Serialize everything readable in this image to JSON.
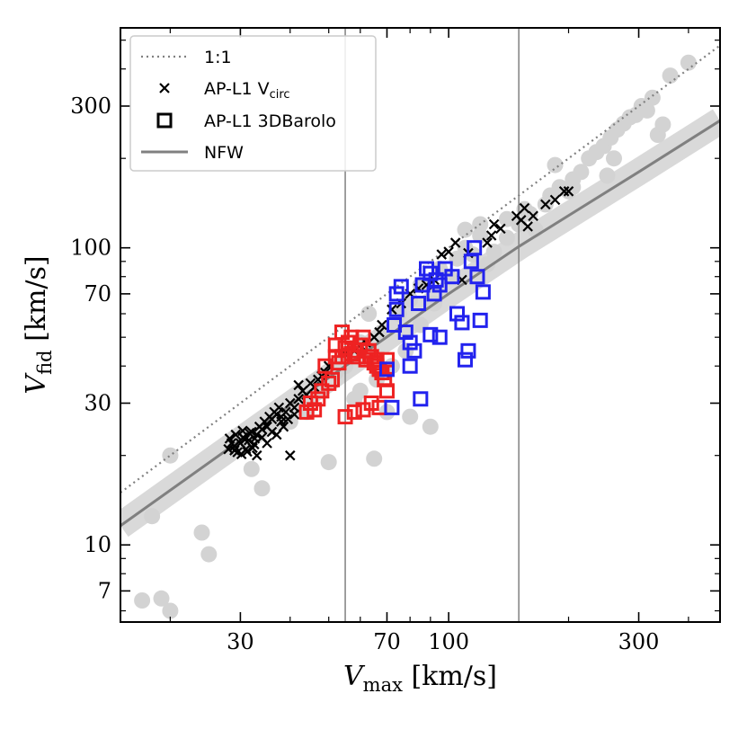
{
  "chart_data": {
    "type": "scatter",
    "title": "",
    "xlabel": {
      "main": "V",
      "sub": "max",
      "unit": " [km/s]"
    },
    "ylabel": {
      "main": "V",
      "sub": "fid",
      "unit": " [km/s]"
    },
    "xscale": "log",
    "yscale": "log",
    "xlim": [
      15,
      480
    ],
    "ylim": [
      5.5,
      550
    ],
    "xticks": [
      30,
      70,
      100,
      300
    ],
    "xtick_labels": [
      "30",
      "70",
      "100",
      "300"
    ],
    "yticks": [
      7,
      10,
      30,
      70,
      100,
      300
    ],
    "ytick_labels": [
      "7",
      "10",
      "30",
      "70",
      "100",
      "300"
    ],
    "x_minor_ticks": [
      20,
      40,
      50,
      60,
      80,
      90,
      200,
      400
    ],
    "y_minor_ticks": [
      6,
      8,
      9,
      20,
      40,
      50,
      60,
      80,
      90,
      200,
      400,
      500
    ],
    "vertical_lines": [
      55,
      150
    ],
    "legend_position": "top-left",
    "legend": [
      {
        "label": "1:1",
        "style": "dotted-line",
        "color": "#808080"
      },
      {
        "label": "AP-L1 V",
        "sub": "circ",
        "style": "x-marker",
        "color": "#000000"
      },
      {
        "label": "AP-L1 3DBarolo",
        "style": "square-marker",
        "color": "#000000"
      },
      {
        "label": "NFW",
        "style": "solid-line",
        "color": "#808080"
      }
    ],
    "colors": {
      "grey_points": "#d3d3d3",
      "nfw_line": "#808080",
      "nfw_band": "#d9d9d9",
      "one_to_one": "#808080",
      "vcirc": "#000000",
      "barolo_low": "#ee2222",
      "barolo_high": "#2222ee",
      "vlines": "#808080"
    },
    "series": [
      {
        "name": "NFW",
        "kind": "line",
        "points": [
          [
            15,
            11.6
          ],
          [
            30,
            22.5
          ],
          [
            55,
            40
          ],
          [
            100,
            70
          ],
          [
            150,
            101
          ],
          [
            300,
            180
          ],
          [
            480,
            268
          ]
        ]
      },
      {
        "name": "grey_points",
        "kind": "circle",
        "points": [
          [
            17,
            6.5
          ],
          [
            19,
            6.6
          ],
          [
            20,
            6
          ],
          [
            24,
            11
          ],
          [
            25,
            9.3
          ],
          [
            18,
            12.5
          ],
          [
            20,
            20
          ],
          [
            34,
            15.5
          ],
          [
            32,
            18
          ],
          [
            50,
            19
          ],
          [
            65,
            19.5
          ],
          [
            90,
            25
          ],
          [
            80,
            27
          ],
          [
            70,
            28
          ],
          [
            35,
            25
          ],
          [
            42,
            30
          ],
          [
            47,
            36
          ],
          [
            55,
            40
          ],
          [
            60,
            48
          ],
          [
            63,
            60
          ],
          [
            68,
            52
          ],
          [
            75,
            60
          ],
          [
            80,
            67
          ],
          [
            85,
            75
          ],
          [
            95,
            85
          ],
          [
            105,
            92
          ],
          [
            110,
            100
          ],
          [
            115,
            95
          ],
          [
            120,
            110
          ],
          [
            125,
            88
          ],
          [
            130,
            97
          ],
          [
            140,
            108
          ],
          [
            150,
            120
          ],
          [
            160,
            130
          ],
          [
            165,
            115
          ],
          [
            175,
            140
          ],
          [
            180,
            150
          ],
          [
            190,
            160
          ],
          [
            200,
            155
          ],
          [
            205,
            170
          ],
          [
            215,
            180
          ],
          [
            225,
            200
          ],
          [
            235,
            210
          ],
          [
            245,
            220
          ],
          [
            255,
            235
          ],
          [
            265,
            250
          ],
          [
            275,
            262
          ],
          [
            285,
            275
          ],
          [
            295,
            280
          ],
          [
            305,
            300
          ],
          [
            315,
            290
          ],
          [
            325,
            320
          ],
          [
            335,
            240
          ],
          [
            345,
            260
          ],
          [
            360,
            380
          ],
          [
            400,
            420
          ],
          [
            260,
            200
          ],
          [
            250,
            175
          ],
          [
            205,
            160
          ],
          [
            185,
            190
          ],
          [
            155,
            135
          ],
          [
            140,
            125
          ],
          [
            120,
            120
          ],
          [
            110,
            115
          ],
          [
            100,
            80
          ],
          [
            92,
            65
          ],
          [
            85,
            55
          ],
          [
            78,
            45
          ],
          [
            72,
            40
          ],
          [
            66,
            36
          ],
          [
            60,
            33
          ],
          [
            58,
            31
          ],
          [
            55,
            42
          ],
          [
            52,
            38
          ],
          [
            48,
            33
          ],
          [
            44,
            28
          ],
          [
            40,
            26
          ]
        ]
      },
      {
        "name": "AP-L1 Vcirc",
        "kind": "x",
        "points": [
          [
            28,
            21
          ],
          [
            28.5,
            22
          ],
          [
            29,
            21.5
          ],
          [
            29.5,
            20.5
          ],
          [
            30,
            22
          ],
          [
            30.5,
            23
          ],
          [
            31,
            21
          ],
          [
            31.5,
            22.5
          ],
          [
            32,
            24
          ],
          [
            32.5,
            21.8
          ],
          [
            33,
            23.5
          ],
          [
            33.5,
            25
          ],
          [
            34,
            24.5
          ],
          [
            34.5,
            26
          ],
          [
            35,
            25
          ],
          [
            35.5,
            27
          ],
          [
            36,
            26.5
          ],
          [
            36.5,
            28
          ],
          [
            37,
            27.5
          ],
          [
            37.5,
            29
          ],
          [
            38,
            26
          ],
          [
            38.5,
            25
          ],
          [
            39,
            28
          ],
          [
            40,
            30
          ],
          [
            41,
            29
          ],
          [
            42,
            31
          ],
          [
            43,
            33
          ],
          [
            44,
            32
          ],
          [
            45,
            35
          ],
          [
            46,
            34
          ],
          [
            47,
            36
          ],
          [
            48,
            37
          ],
          [
            49,
            38
          ],
          [
            50,
            40
          ],
          [
            42,
            34.5
          ],
          [
            33,
            20
          ],
          [
            40,
            20
          ],
          [
            29,
            20.8
          ],
          [
            30.2,
            20.2
          ],
          [
            31.2,
            20.6
          ],
          [
            32.2,
            21.2
          ],
          [
            28.2,
            22.8
          ],
          [
            29.2,
            23.5
          ],
          [
            30.4,
            24.2
          ],
          [
            30.8,
            22.6
          ],
          [
            31.6,
            23.8
          ],
          [
            32.6,
            22.8
          ],
          [
            35,
            22
          ],
          [
            34,
            23
          ],
          [
            36,
            24
          ],
          [
            37,
            23.5
          ],
          [
            38,
            27
          ],
          [
            39.5,
            26.5
          ],
          [
            41,
            27.5
          ],
          [
            55,
            44
          ],
          [
            58,
            45
          ],
          [
            60,
            47
          ],
          [
            62,
            48
          ],
          [
            65,
            50
          ],
          [
            67,
            52
          ],
          [
            68,
            55
          ],
          [
            72,
            62
          ],
          [
            76,
            65
          ],
          [
            80,
            70
          ],
          [
            84,
            73
          ],
          [
            88,
            75
          ],
          [
            92,
            78
          ],
          [
            96,
            95
          ],
          [
            100,
            97
          ],
          [
            104,
            104
          ],
          [
            108,
            78
          ],
          [
            112,
            96
          ],
          [
            125,
            104
          ],
          [
            128,
            110
          ],
          [
            130,
            120
          ],
          [
            135,
            116
          ],
          [
            148,
            128
          ],
          [
            152,
            124
          ],
          [
            155,
            136
          ],
          [
            175,
            140
          ],
          [
            185,
            145
          ],
          [
            195,
            155
          ],
          [
            200,
            155
          ],
          [
            163,
            128
          ],
          [
            158,
            118
          ]
        ]
      },
      {
        "name": "AP-L1 3DBarolo (low)",
        "kind": "square",
        "color_key": "barolo_low",
        "points": [
          [
            44,
            28
          ],
          [
            45,
            30
          ],
          [
            47,
            31
          ],
          [
            48,
            33
          ],
          [
            50,
            35
          ],
          [
            51,
            36
          ],
          [
            52,
            43
          ],
          [
            53,
            41
          ],
          [
            54,
            43
          ],
          [
            55,
            46
          ],
          [
            56,
            48
          ],
          [
            57,
            44
          ],
          [
            58,
            45
          ],
          [
            59,
            43
          ],
          [
            60,
            47
          ],
          [
            61,
            50
          ],
          [
            62,
            42
          ],
          [
            63,
            45
          ],
          [
            64,
            43
          ],
          [
            65,
            41
          ],
          [
            66,
            40
          ],
          [
            67,
            39
          ],
          [
            68,
            38
          ],
          [
            69,
            36
          ],
          [
            70,
            33
          ],
          [
            55,
            27
          ],
          [
            58,
            28
          ],
          [
            61,
            28.5
          ],
          [
            64,
            30
          ],
          [
            67,
            29
          ],
          [
            46,
            28.5
          ],
          [
            49,
            40
          ],
          [
            52,
            47
          ],
          [
            54,
            52
          ],
          [
            57,
            50
          ],
          [
            60,
            47
          ],
          [
            63,
            45
          ],
          [
            66,
            42
          ],
          [
            70,
            42
          ]
        ]
      },
      {
        "name": "AP-L1 3DBarolo (high)",
        "kind": "square",
        "color_key": "barolo_high",
        "points": [
          [
            70,
            39
          ],
          [
            72,
            29
          ],
          [
            73,
            55
          ],
          [
            74,
            70
          ],
          [
            76,
            74
          ],
          [
            78,
            52
          ],
          [
            80,
            48
          ],
          [
            82,
            45
          ],
          [
            84,
            65
          ],
          [
            85,
            31
          ],
          [
            86,
            75
          ],
          [
            88,
            85
          ],
          [
            90,
            82
          ],
          [
            92,
            70
          ],
          [
            93,
            78
          ],
          [
            95,
            75
          ],
          [
            98,
            85
          ],
          [
            102,
            80
          ],
          [
            105,
            60
          ],
          [
            108,
            56
          ],
          [
            110,
            42
          ],
          [
            112,
            45
          ],
          [
            114,
            90
          ],
          [
            116,
            100
          ],
          [
            118,
            80
          ],
          [
            120,
            57
          ],
          [
            122,
            71
          ],
          [
            90,
            51
          ],
          [
            95,
            50
          ],
          [
            80,
            40
          ],
          [
            74,
            62
          ]
        ]
      }
    ]
  }
}
